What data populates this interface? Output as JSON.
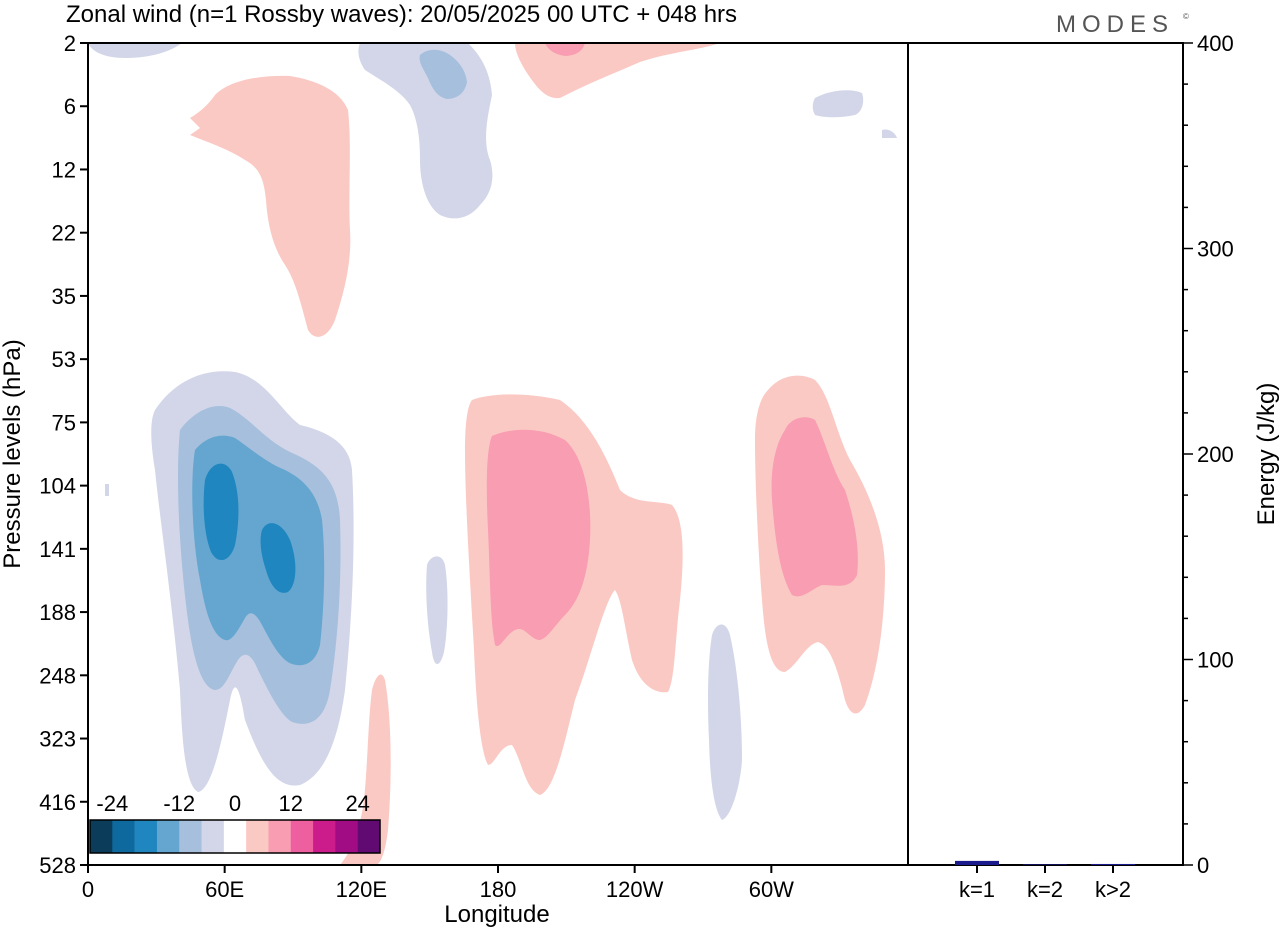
{
  "title": "Zonal wind (n=1 Rossby waves):  20/05/2025  00 UTC  + 048 hrs",
  "brand": "MODES",
  "brand_mark": "©",
  "chart_data": [
    {
      "type": "heatmap",
      "title": "Zonal wind (n=1 Rossby waves):  20/05/2025  00 UTC  + 048 hrs",
      "xlabel": "Longitude",
      "ylabel": "Pressure levels (hPa)",
      "x_ticks": [
        {
          "label": "0",
          "lon": 0
        },
        {
          "label": "60E",
          "lon": 60
        },
        {
          "label": "120E",
          "lon": 120
        },
        {
          "label": "180",
          "lon": 180
        },
        {
          "label": "120W",
          "lon": 240
        },
        {
          "label": "60W",
          "lon": 300
        }
      ],
      "xlim": [
        0,
        360
      ],
      "y_ticks": [
        "2",
        "6",
        "12",
        "22",
        "35",
        "53",
        "75",
        "104",
        "141",
        "188",
        "248",
        "323",
        "416",
        "528"
      ],
      "colorbar": {
        "labels": [
          "-24",
          "-12",
          "0",
          "12",
          "24"
        ],
        "levels": [
          -28,
          -24,
          -20,
          -16,
          -12,
          -8,
          -4,
          4,
          8,
          12,
          16,
          20,
          24,
          28
        ],
        "colors": [
          "#0b3d5a",
          "#0e6a9e",
          "#1f86bf",
          "#64a6cf",
          "#a5bfdd",
          "#d2d6e8",
          "#ffffff",
          "#fbc9c4",
          "#f89db2",
          "#ee5fa0",
          "#cc1b8b",
          "#a10c84",
          "#600a72"
        ]
      },
      "regions": [
        {
          "value": -6,
          "color": "#d2d6e8",
          "lon": [
            28,
            112
          ],
          "level": [
            53,
            416
          ]
        },
        {
          "value": -10,
          "color": "#a5bfdd",
          "lon": [
            38,
            100
          ],
          "level": [
            65,
            300
          ]
        },
        {
          "value": -14,
          "color": "#64a6cf",
          "lon": [
            44,
            98
          ],
          "level": [
            80,
            260
          ]
        },
        {
          "value": -18,
          "color": "#1f86bf",
          "lon": [
            50,
            62
          ],
          "level": [
            104,
            141
          ]
        },
        {
          "value": -18,
          "color": "#1f86bf",
          "lon": [
            75,
            88
          ],
          "level": [
            120,
            170
          ]
        },
        {
          "value": 6,
          "color": "#fbc9c4",
          "lon": [
            168,
            260
          ],
          "level": [
            70,
            400
          ]
        },
        {
          "value": 10,
          "color": "#f89db2",
          "lon": [
            175,
            220
          ],
          "level": [
            85,
            220
          ]
        },
        {
          "value": 6,
          "color": "#fbc9c4",
          "lon": [
            297,
            350
          ],
          "level": [
            55,
            300
          ]
        },
        {
          "value": 10,
          "color": "#f89db2",
          "lon": [
            310,
            345
          ],
          "level": [
            75,
            175
          ]
        },
        {
          "value": 6,
          "color": "#fbc9c4",
          "lon": [
            45,
            115
          ],
          "level": [
            5,
            45
          ]
        },
        {
          "value": 6,
          "color": "#fbc9c4",
          "lon": [
            190,
            280
          ],
          "level": [
            2,
            5
          ]
        },
        {
          "value": 10,
          "color": "#f89db2",
          "lon": [
            200,
            216
          ],
          "level": [
            2,
            3
          ]
        },
        {
          "value": -6,
          "color": "#d2d6e8",
          "lon": [
            118,
            178
          ],
          "level": [
            2,
            25
          ]
        },
        {
          "value": -10,
          "color": "#a5bfdd",
          "lon": [
            146,
            166
          ],
          "level": [
            3,
            6
          ]
        },
        {
          "value": -6,
          "color": "#d2d6e8",
          "lon": [
            0,
            40
          ],
          "level": [
            2,
            3
          ]
        },
        {
          "value": -6,
          "color": "#d2d6e8",
          "lon": [
            320,
            340
          ],
          "level": [
            5,
            7
          ]
        },
        {
          "value": -6,
          "color": "#d2d6e8",
          "lon": [
            148,
            158
          ],
          "level": [
            130,
            240
          ]
        },
        {
          "value": -6,
          "color": "#d2d6e8",
          "lon": [
            272,
            288
          ],
          "level": [
            180,
            430
          ]
        },
        {
          "value": 6,
          "color": "#fbc9c4",
          "lon": [
            112,
            132
          ],
          "level": [
            240,
            528
          ]
        }
      ]
    },
    {
      "type": "bar",
      "categories": [
        "k=1",
        "k=2",
        "k>2"
      ],
      "values": [
        2,
        0.3,
        0.5
      ],
      "ylabel": "Energy (J/kg)",
      "ylim": [
        0,
        400
      ],
      "y_ticks": [
        "0",
        "100",
        "200",
        "300",
        "400"
      ],
      "bar_color": "#1a1a8c"
    }
  ]
}
